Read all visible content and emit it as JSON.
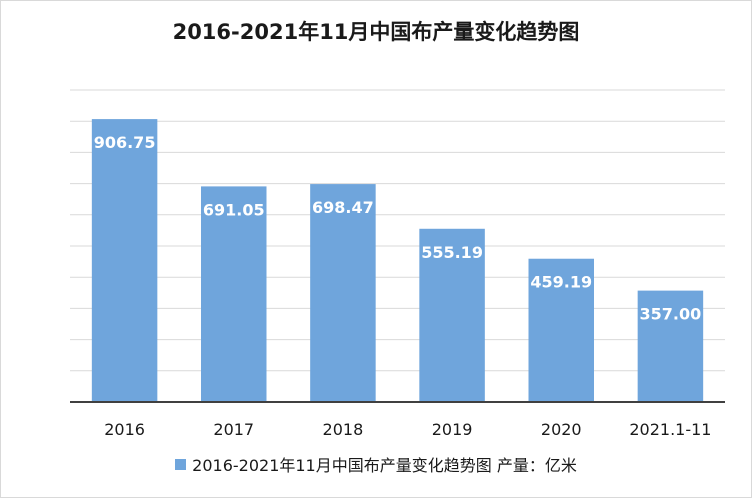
{
  "chart_data": {
    "type": "bar",
    "title": "2016-2021年11月中国布产量变化趋势图",
    "categories": [
      "2016",
      "2017",
      "2018",
      "2019",
      "2020",
      "2021.1-11"
    ],
    "series": [
      {
        "name": "2016-2021年11月中国布产量变化趋势图 产量：亿米",
        "values": [
          906.75,
          691.05,
          698.47,
          555.19,
          459.19,
          357.0
        ],
        "labels": [
          "906.75",
          "691.05",
          "698.47",
          "555.19",
          "459.19",
          "357.00"
        ]
      }
    ],
    "xlabel": "",
    "ylabel": "",
    "ylim": [
      0,
      1000
    ],
    "y_gridlines": 10,
    "y_tick_labels_shown": false,
    "grid": true,
    "legend_position": "bottom",
    "colors": {
      "bar": "#6fa5dc",
      "label": "#ffffff",
      "grid": "#d9d9d9",
      "axis": "#404040"
    }
  }
}
